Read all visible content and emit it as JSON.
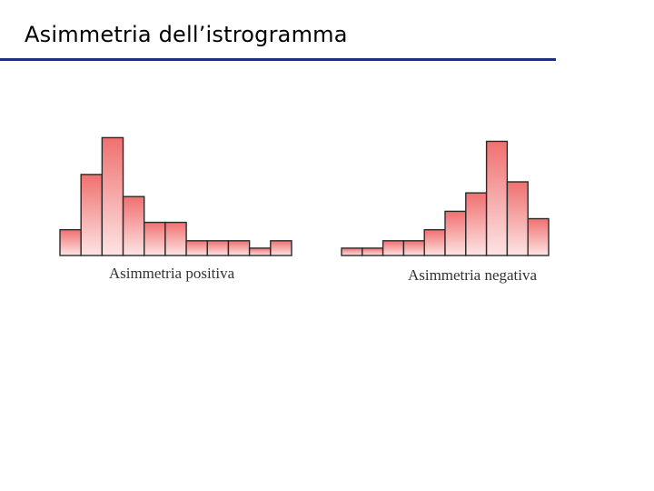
{
  "title": "Asimmetria dell’istrogramma",
  "colors": {
    "rule": "#1f2f7a",
    "bar_top": "#f07070",
    "bar_bottom": "#fde4e4",
    "bar_stroke": "#2a2a2a"
  },
  "chart_data": [
    {
      "type": "bar",
      "caption": "Asimmetria positiva",
      "values": [
        7,
        22,
        32,
        16,
        9,
        9,
        4,
        4,
        4,
        2,
        4
      ]
    },
    {
      "type": "bar",
      "caption": "Asimmetria negativa",
      "values": [
        2,
        2,
        4,
        4,
        7,
        12,
        17,
        31,
        20,
        10
      ]
    }
  ]
}
